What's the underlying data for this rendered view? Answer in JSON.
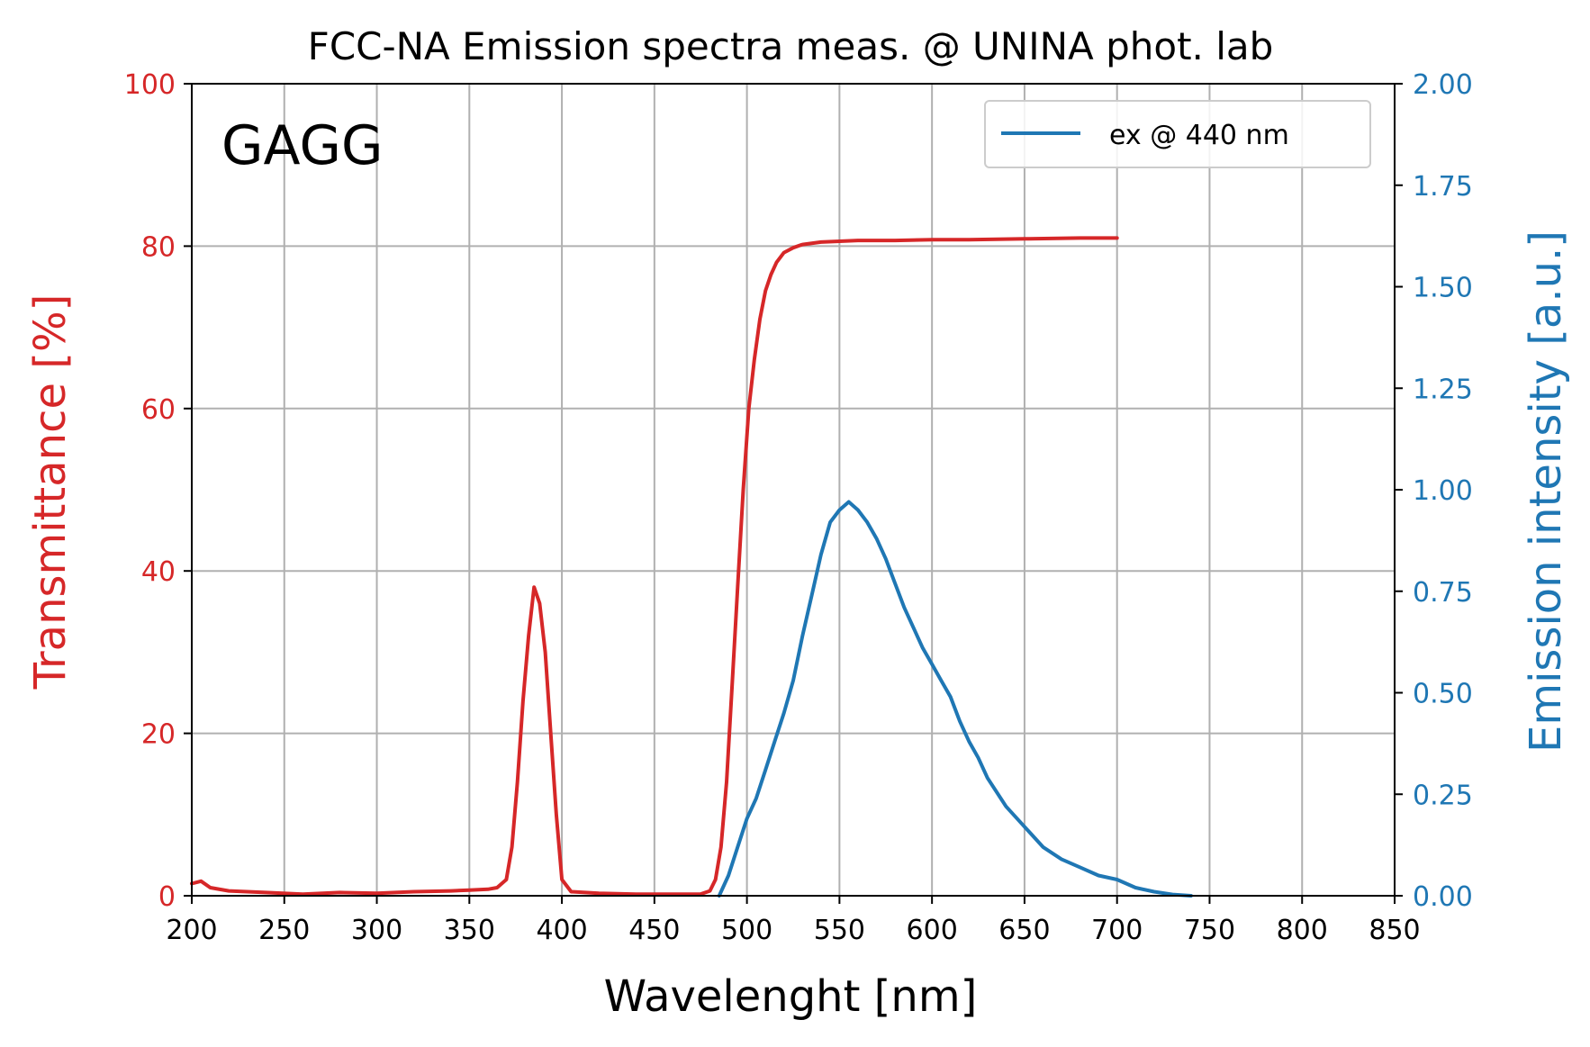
{
  "chart_data": {
    "type": "line",
    "title": "FCC-NA Emission spectra meas. @ UNINA phot. lab",
    "annotation": "GAGG",
    "xlabel": "Wavelenght [nm]",
    "ylabel_left": "Transmittance [%]",
    "ylabel_right": "Emission intensity [a.u.]",
    "xlim": [
      200,
      850
    ],
    "ylim_left": [
      0,
      100
    ],
    "ylim_right": [
      0,
      2.0
    ],
    "x_ticks": [
      "200",
      "250",
      "300",
      "350",
      "400",
      "450",
      "500",
      "550",
      "600",
      "650",
      "700",
      "750",
      "800",
      "850"
    ],
    "y_left_ticks": [
      "0",
      "20",
      "40",
      "60",
      "80",
      "100"
    ],
    "y_right_ticks": [
      "0.00",
      "0.25",
      "0.50",
      "0.75",
      "1.00",
      "1.25",
      "1.50",
      "1.75",
      "2.00"
    ],
    "grid": true,
    "legend_position": "top-right",
    "colors": {
      "transmittance": "#d62728",
      "emission": "#1f77b4",
      "grid": "#b0b0b0",
      "text": "#000000"
    },
    "series": [
      {
        "axis": "left",
        "x": [
          200,
          205,
          210,
          220,
          240,
          260,
          280,
          300,
          320,
          340,
          350,
          360,
          365,
          370,
          373,
          376,
          379,
          382,
          385,
          388,
          391,
          394,
          397,
          400,
          405,
          420,
          440,
          460,
          475,
          480,
          483,
          486,
          489,
          492,
          495,
          498,
          501,
          504,
          507,
          510,
          513,
          516,
          520,
          525,
          530,
          540,
          550,
          560,
          580,
          600,
          620,
          650,
          680,
          700
        ],
        "values": [
          1.5,
          1.8,
          1.0,
          0.6,
          0.4,
          0.2,
          0.4,
          0.3,
          0.5,
          0.6,
          0.7,
          0.8,
          1.0,
          2.0,
          6.0,
          14.0,
          24.0,
          32.0,
          38.0,
          36.0,
          30.0,
          20.0,
          10.0,
          2.0,
          0.5,
          0.3,
          0.2,
          0.2,
          0.2,
          0.6,
          2.0,
          6.0,
          14.0,
          26.0,
          38.0,
          50.0,
          60.0,
          66.0,
          71.0,
          74.5,
          76.5,
          78.0,
          79.2,
          79.8,
          80.2,
          80.5,
          80.6,
          80.7,
          80.7,
          80.8,
          80.8,
          80.9,
          81.0,
          81.0
        ]
      },
      {
        "axis": "right",
        "name": "ex @ 440 nm",
        "x": [
          485,
          490,
          495,
          500,
          505,
          510,
          515,
          520,
          525,
          530,
          535,
          540,
          545,
          550,
          555,
          560,
          565,
          570,
          575,
          580,
          585,
          590,
          595,
          600,
          605,
          610,
          615,
          620,
          625,
          630,
          640,
          650,
          660,
          670,
          680,
          690,
          700,
          710,
          720,
          730,
          740
        ],
        "values": [
          0.0,
          0.05,
          0.12,
          0.19,
          0.24,
          0.31,
          0.38,
          0.45,
          0.53,
          0.64,
          0.74,
          0.84,
          0.92,
          0.95,
          0.97,
          0.95,
          0.92,
          0.88,
          0.83,
          0.77,
          0.71,
          0.66,
          0.61,
          0.57,
          0.53,
          0.49,
          0.43,
          0.38,
          0.34,
          0.29,
          0.22,
          0.17,
          0.12,
          0.09,
          0.07,
          0.05,
          0.04,
          0.02,
          0.01,
          0.003,
          0.0
        ]
      }
    ]
  }
}
